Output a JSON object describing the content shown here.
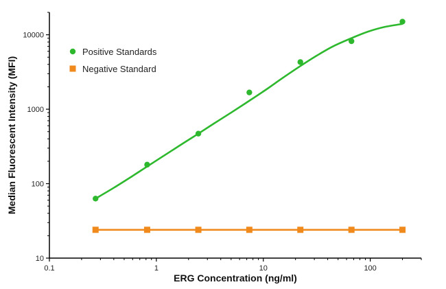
{
  "chart_data": {
    "type": "line",
    "xlabel": "ERG Concentration (ng/ml)",
    "ylabel": "Median Fluorescent Intensity (MFI)",
    "x_scale": "log",
    "y_scale": "log",
    "xlim": [
      0.1,
      300
    ],
    "ylim": [
      10,
      20000
    ],
    "x_ticks": [
      {
        "value": 0.1,
        "label": "0.1"
      },
      {
        "value": 1,
        "label": "1"
      },
      {
        "value": 10,
        "label": "10"
      },
      {
        "value": 100,
        "label": "100"
      }
    ],
    "y_ticks": [
      {
        "value": 10,
        "label": "10"
      },
      {
        "value": 100,
        "label": "100"
      },
      {
        "value": 1000,
        "label": "1000"
      },
      {
        "value": 10000,
        "label": "10000"
      }
    ],
    "legend_position": "top-left",
    "grid": false,
    "series": [
      {
        "name": "Positive Standards",
        "color": "#2db82d",
        "marker": "circle",
        "x": [
          0.27,
          0.82,
          2.47,
          7.4,
          22.2,
          66.7,
          200
        ],
        "y": [
          63,
          180,
          470,
          1680,
          4300,
          8200,
          15000
        ],
        "fit": "4PL sigmoid",
        "fit_curve": {
          "x": [
            0.27,
            0.4,
            0.6,
            0.82,
            1.2,
            1.8,
            2.47,
            3.5,
            5,
            7.4,
            11,
            15,
            22.2,
            32,
            45,
            66.7,
            95,
            135,
            200
          ],
          "y": [
            63,
            88,
            127,
            170,
            242,
            352,
            470,
            650,
            900,
            1300,
            1900,
            2600,
            3800,
            5300,
            7000,
            9000,
            11000,
            12700,
            14000
          ]
        }
      },
      {
        "name": "Negative Standard",
        "color": "#f08a1c",
        "marker": "square",
        "x": [
          0.27,
          0.82,
          2.47,
          7.4,
          22.2,
          66.7,
          200
        ],
        "y": [
          24,
          24,
          24,
          24,
          24,
          24,
          24
        ]
      }
    ]
  }
}
